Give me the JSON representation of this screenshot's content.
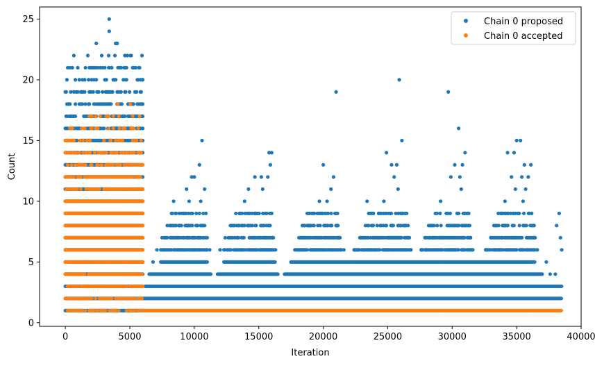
{
  "chart_data": {
    "type": "scatter",
    "title": "",
    "xlabel": "Iteration",
    "ylabel": "Count",
    "xlim": [
      -2000,
      40000
    ],
    "ylim": [
      -0.3,
      26
    ],
    "xticks": [
      0,
      5000,
      10000,
      15000,
      20000,
      25000,
      30000,
      35000,
      40000
    ],
    "yticks": [
      0,
      5,
      10,
      15,
      20,
      25
    ],
    "grid": false,
    "legend_position": "top-right",
    "iteration_max": 38500,
    "series": [
      {
        "name": "Chain 0 proposed",
        "color": "#1f77b4",
        "note": "dense band sampled; phase1 iterations 0-6000",
        "phase1_range": [
          0,
          6000
        ],
        "phase1_levels": [
          1,
          2,
          3,
          4,
          5,
          6,
          7,
          8,
          9,
          10,
          11,
          12,
          13,
          14,
          15,
          16,
          17,
          18,
          19,
          20,
          21,
          22,
          23
        ],
        "phase2_points": [
          [
            3400,
            25
          ],
          [
            3400,
            24
          ],
          [
            25900,
            20
          ],
          [
            21000,
            19
          ],
          [
            29700,
            19
          ],
          [
            30500,
            16
          ],
          [
            10600,
            15
          ],
          [
            26100,
            15
          ],
          [
            35000,
            15
          ],
          [
            35300,
            15
          ],
          [
            15800,
            14
          ],
          [
            16000,
            14
          ],
          [
            24900,
            14
          ],
          [
            31000,
            14
          ],
          [
            34300,
            14
          ],
          [
            34800,
            14
          ],
          [
            10400,
            13
          ],
          [
            15900,
            13
          ],
          [
            20000,
            13
          ],
          [
            25300,
            13
          ],
          [
            25700,
            13
          ],
          [
            30200,
            13
          ],
          [
            30800,
            13
          ],
          [
            35600,
            13
          ],
          [
            36100,
            13
          ],
          [
            9800,
            12
          ],
          [
            10000,
            12
          ],
          [
            14700,
            12
          ],
          [
            15200,
            12
          ],
          [
            15700,
            12
          ],
          [
            20800,
            12
          ],
          [
            25500,
            12
          ],
          [
            29900,
            12
          ],
          [
            30600,
            12
          ],
          [
            34600,
            12
          ],
          [
            35400,
            12
          ],
          [
            35900,
            12
          ],
          [
            9400,
            11
          ],
          [
            10800,
            11
          ],
          [
            14200,
            11
          ],
          [
            15300,
            11
          ],
          [
            20600,
            11
          ],
          [
            25800,
            11
          ],
          [
            30700,
            11
          ],
          [
            34900,
            11
          ],
          [
            35700,
            11
          ],
          [
            8400,
            10
          ],
          [
            9600,
            10
          ],
          [
            10500,
            10
          ],
          [
            13900,
            10
          ],
          [
            19700,
            10
          ],
          [
            20300,
            10
          ],
          [
            23400,
            10
          ],
          [
            24700,
            10
          ],
          [
            29100,
            10
          ],
          [
            34100,
            10
          ],
          [
            35500,
            10
          ],
          [
            9200,
            9
          ],
          [
            10900,
            9
          ],
          [
            13500,
            9
          ],
          [
            16000,
            9
          ],
          [
            19300,
            9
          ],
          [
            21100,
            9
          ],
          [
            24300,
            9
          ],
          [
            28700,
            9
          ],
          [
            31200,
            9
          ],
          [
            33800,
            9
          ],
          [
            38300,
            9
          ],
          [
            7900,
            8
          ],
          [
            8800,
            8
          ],
          [
            10700,
            8
          ],
          [
            12800,
            8
          ],
          [
            15600,
            8
          ],
          [
            18900,
            8
          ],
          [
            21000,
            8
          ],
          [
            23800,
            8
          ],
          [
            26400,
            8
          ],
          [
            28300,
            8
          ],
          [
            31000,
            8
          ],
          [
            33400,
            8
          ],
          [
            36200,
            8
          ],
          [
            38100,
            8
          ],
          [
            7500,
            7
          ],
          [
            8600,
            7
          ],
          [
            11000,
            7
          ],
          [
            12400,
            7
          ],
          [
            16100,
            7
          ],
          [
            18500,
            7
          ],
          [
            21200,
            7
          ],
          [
            22900,
            7
          ],
          [
            26600,
            7
          ],
          [
            27900,
            7
          ],
          [
            31400,
            7
          ],
          [
            33000,
            7
          ],
          [
            36400,
            7
          ],
          [
            38400,
            7
          ],
          [
            7100,
            6
          ],
          [
            11200,
            6
          ],
          [
            12000,
            6
          ],
          [
            16300,
            6
          ],
          [
            17800,
            6
          ],
          [
            21600,
            6
          ],
          [
            22400,
            6
          ],
          [
            26800,
            6
          ],
          [
            27600,
            6
          ],
          [
            31600,
            6
          ],
          [
            32600,
            6
          ],
          [
            36600,
            6
          ],
          [
            38500,
            6
          ],
          [
            6800,
            5
          ],
          [
            37300,
            5
          ],
          [
            6500,
            4
          ],
          [
            37600,
            4
          ],
          [
            38000,
            4
          ],
          [
            6300,
            3
          ],
          [
            36800,
            3
          ]
        ],
        "phase2_bands": [
          {
            "level": 5,
            "segments": [
              [
                7400,
                11000
              ],
              [
                12300,
                16300
              ],
              [
                17500,
                36400
              ]
            ]
          },
          {
            "level": 4,
            "segments": [
              [
                6600,
                11300
              ],
              [
                11800,
                16500
              ],
              [
                17000,
                37000
              ]
            ]
          },
          {
            "level": 3,
            "segments": [
              [
                6200,
                38500
              ]
            ]
          },
          {
            "level": 2,
            "segments": [
              [
                6000,
                38500
              ]
            ]
          }
        ]
      },
      {
        "name": "Chain 0 accepted",
        "color": "#ff7f0e",
        "phase1_range": [
          0,
          6000
        ],
        "phase1_levels": [
          1,
          2,
          3,
          4,
          5,
          6,
          7,
          8,
          9,
          10,
          11,
          12,
          13,
          14,
          15,
          16,
          17,
          18
        ],
        "phase2_bands": [
          {
            "level": 1,
            "segments": [
              [
                6000,
                38500
              ]
            ]
          }
        ]
      }
    ]
  }
}
